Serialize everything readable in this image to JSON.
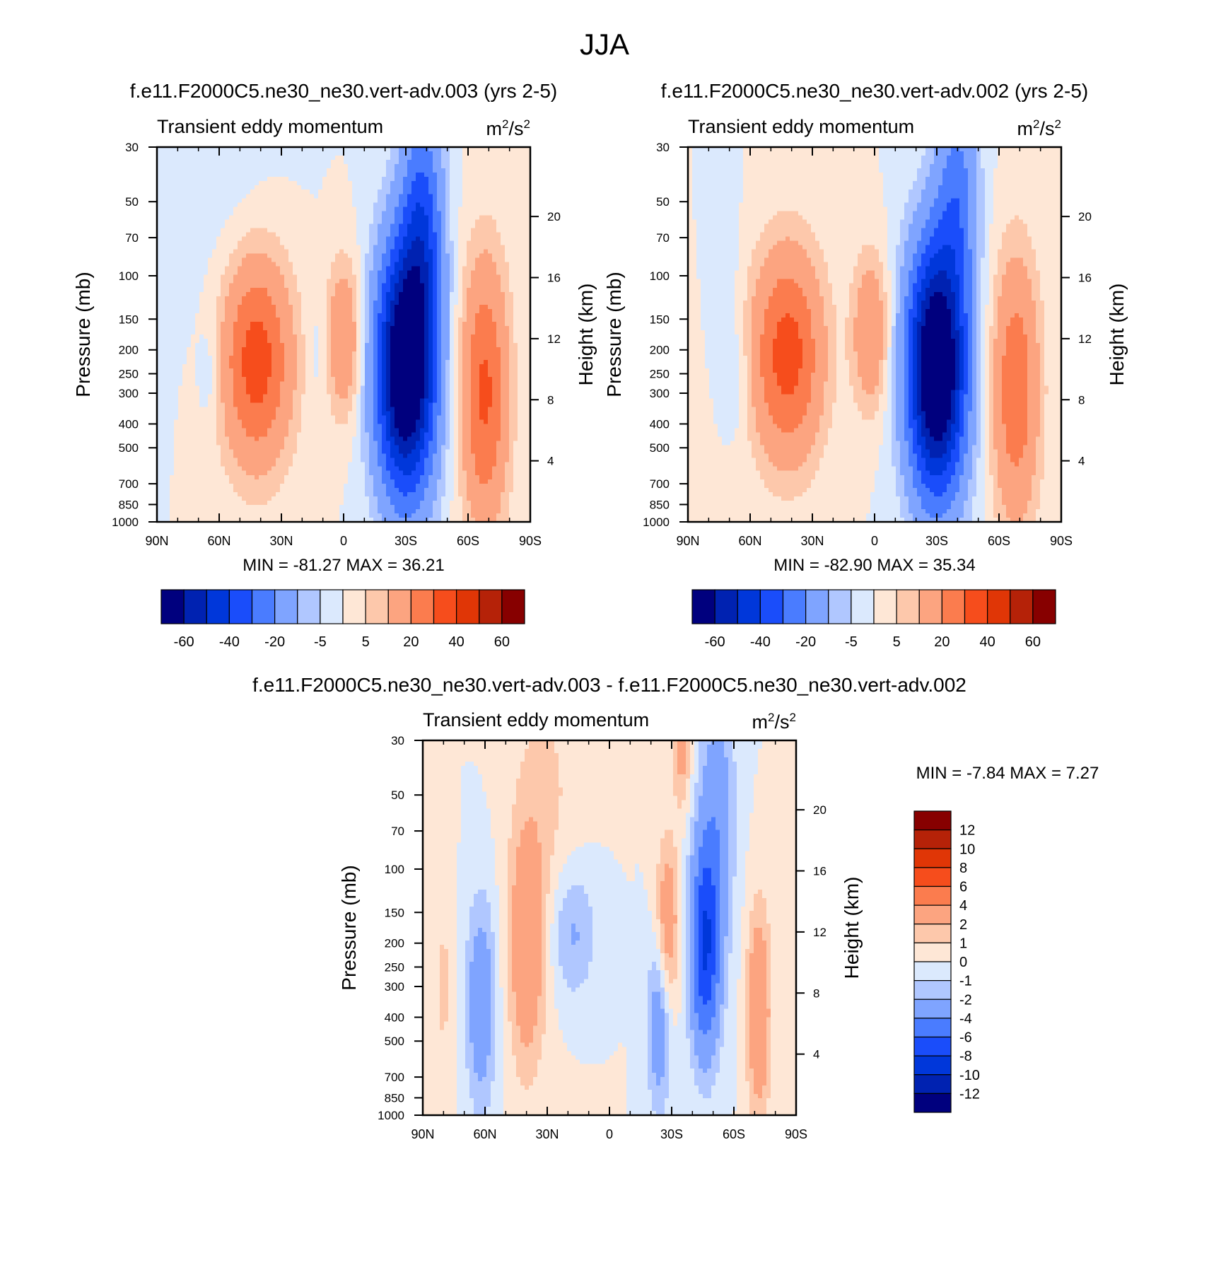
{
  "figure_title": "JJA",
  "colors": {
    "full_levels": [
      "#00007e",
      "#0022b1",
      "#0037da",
      "#1a4dfa",
      "#4a7cff",
      "#7fa4ff",
      "#b0c7ff",
      "#dbe9fd",
      "#fee7d6",
      "#fdc8ab",
      "#fca480",
      "#fb7c4e",
      "#f64d1c",
      "#e03606",
      "#b52208",
      "#870000"
    ],
    "diff_levels": [
      "#00007e",
      "#0022b1",
      "#0037da",
      "#1a4dfa",
      "#4a7cff",
      "#7fa4ff",
      "#b0c7ff",
      "#dbe9fd",
      "#fee7d6",
      "#fdc8ab",
      "#fca480",
      "#fb7c4e",
      "#f64d1c",
      "#e03606",
      "#b52208",
      "#870000"
    ]
  },
  "chart_data": [
    {
      "type": "heatmap",
      "subtype": "filled-contour",
      "title": "f.e11.F2000C5.ne30_ne30.vert-adv.003 (yrs 2-5)",
      "left_string": "Transient eddy momentum",
      "units": {
        "base": "m",
        "sup1": "2",
        "mid": "/s",
        "sup2": "2"
      },
      "ylabel": "Pressure (mb)",
      "ylabel_right": "Height (km)",
      "xticks": [
        "90N",
        "60N",
        "30N",
        "0",
        "30S",
        "60S",
        "90S"
      ],
      "xlim": [
        90,
        -90
      ],
      "yticks": [
        30,
        50,
        70,
        100,
        150,
        200,
        250,
        300,
        400,
        500,
        700,
        850,
        1000
      ],
      "ylim": [
        1000,
        30
      ],
      "height_ticks": [
        20,
        16,
        12,
        8,
        4
      ],
      "min_label": "MIN = -81.27",
      "max_label": "MAX =  36.21",
      "min": -81.27,
      "max": 36.21,
      "levels": [
        -70,
        -60,
        -50,
        -40,
        -30,
        -20,
        -10,
        -5,
        0,
        5,
        10,
        20,
        30,
        40,
        50,
        60,
        70
      ],
      "colorbar_labels": [
        "-60",
        "-40",
        "-20",
        "-5",
        "5",
        "20",
        "40",
        "60"
      ],
      "features": [
        {
          "lat": 42,
          "p": 220,
          "amp": 36,
          "wlat": 12,
          "wlogp": 0.3
        },
        {
          "lat": 0,
          "p": 180,
          "amp": 20,
          "wlat": 6,
          "wlogp": 0.22
        },
        {
          "lat": -30,
          "p": 240,
          "amp": -81,
          "wlat": 10,
          "wlogp": 0.36
        },
        {
          "lat": -38,
          "p": 60,
          "amp": -30,
          "wlat": 7,
          "wlogp": 0.35
        },
        {
          "lat": -68,
          "p": 300,
          "amp": 32,
          "wlat": 8,
          "wlogp": 0.38
        },
        {
          "lat": 64,
          "p": 250,
          "amp": -6,
          "wlat": 4,
          "wlogp": 0.15
        },
        {
          "lat": 12,
          "p": 200,
          "amp": -4,
          "wlat": 4,
          "wlogp": 0.2
        },
        {
          "lat": 55,
          "p": 60,
          "amp": -3,
          "wlat": 18,
          "wlogp": 0.4
        }
      ]
    },
    {
      "type": "heatmap",
      "subtype": "filled-contour",
      "title": "f.e11.F2000C5.ne30_ne30.vert-adv.002 (yrs 2-5)",
      "left_string": "Transient eddy momentum",
      "units": {
        "base": "m",
        "sup1": "2",
        "mid": "/s",
        "sup2": "2"
      },
      "ylabel": "Pressure (mb)",
      "ylabel_right": "Height (km)",
      "xticks": [
        "90N",
        "60N",
        "30N",
        "0",
        "30S",
        "60S",
        "90S"
      ],
      "xlim": [
        90,
        -90
      ],
      "yticks": [
        30,
        50,
        70,
        100,
        150,
        200,
        250,
        300,
        400,
        500,
        700,
        850,
        1000
      ],
      "ylim": [
        1000,
        30
      ],
      "height_ticks": [
        20,
        16,
        12,
        8,
        4
      ],
      "min_label": "MIN = -82.90",
      "max_label": "MAX =  35.34",
      "min": -82.9,
      "max": 35.34,
      "levels": [
        -70,
        -60,
        -50,
        -40,
        -30,
        -20,
        -10,
        -5,
        0,
        5,
        10,
        20,
        30,
        40,
        50,
        60,
        70
      ],
      "colorbar_labels": [
        "-60",
        "-40",
        "-20",
        "-5",
        "5",
        "20",
        "40",
        "60"
      ],
      "features": [
        {
          "lat": 42,
          "p": 210,
          "amp": 35,
          "wlat": 12,
          "wlogp": 0.3
        },
        {
          "lat": 2,
          "p": 170,
          "amp": 20,
          "wlat": 6,
          "wlogp": 0.22
        },
        {
          "lat": -30,
          "p": 240,
          "amp": -83,
          "wlat": 10,
          "wlogp": 0.36
        },
        {
          "lat": -40,
          "p": 45,
          "amp": -22,
          "wlat": 7,
          "wlogp": 0.3
        },
        {
          "lat": -68,
          "p": 290,
          "amp": 28,
          "wlat": 8,
          "wlogp": 0.38
        },
        {
          "lat": 66,
          "p": 270,
          "amp": -5,
          "wlat": 4,
          "wlogp": 0.15
        },
        {
          "lat": 70,
          "p": 120,
          "amp": -3,
          "wlat": 5,
          "wlogp": 0.3
        }
      ]
    },
    {
      "type": "heatmap",
      "subtype": "filled-contour",
      "title": "f.e11.F2000C5.ne30_ne30.vert-adv.003 - f.e11.F2000C5.ne30_ne30.vert-adv.002",
      "left_string": "Transient eddy momentum",
      "units": {
        "base": "m",
        "sup1": "2",
        "mid": "/s",
        "sup2": "2"
      },
      "ylabel": "Pressure (mb)",
      "ylabel_right": "Height (km)",
      "xticks": [
        "90N",
        "60N",
        "30N",
        "0",
        "30S",
        "60S",
        "90S"
      ],
      "xlim": [
        90,
        -90
      ],
      "yticks": [
        30,
        50,
        70,
        100,
        150,
        200,
        250,
        300,
        400,
        500,
        700,
        850,
        1000
      ],
      "ylim": [
        1000,
        30
      ],
      "height_ticks": [
        20,
        16,
        12,
        8,
        4
      ],
      "min_label": "MIN =  -7.84",
      "max_label": "MAX =   7.27",
      "min": -7.84,
      "max": 7.27,
      "levels": [
        -14,
        -12,
        -10,
        -8,
        -6,
        -4,
        -2,
        -1,
        0,
        1,
        2,
        4,
        6,
        8,
        10,
        12,
        14
      ],
      "colorbar_labels": [
        "12",
        "10",
        "8",
        "6",
        "4",
        "2",
        "1",
        "0",
        "-1",
        "-2",
        "-4",
        "-6",
        "-8",
        "-10",
        "-12"
      ],
      "features": [
        {
          "lat": 40,
          "p": 210,
          "amp": 3.5,
          "wlat": 6,
          "wlogp": 0.35
        },
        {
          "lat": 62,
          "p": 350,
          "amp": -3.5,
          "wlat": 5,
          "wlogp": 0.3
        },
        {
          "lat": 18,
          "p": 180,
          "amp": -2.5,
          "wlat": 8,
          "wlogp": 0.2
        },
        {
          "lat": -28,
          "p": 170,
          "amp": 3.5,
          "wlat": 4,
          "wlogp": 0.25
        },
        {
          "lat": -46,
          "p": 210,
          "amp": -7.8,
          "wlat": 5,
          "wlogp": 0.3
        },
        {
          "lat": -52,
          "p": 60,
          "amp": -3,
          "wlat": 6,
          "wlogp": 0.4
        },
        {
          "lat": -72,
          "p": 380,
          "amp": 4,
          "wlat": 4,
          "wlogp": 0.3
        },
        {
          "lat": -24,
          "p": 420,
          "amp": -3.5,
          "wlat": 4,
          "wlogp": 0.25
        },
        {
          "lat": -35,
          "p": 35,
          "amp": 2.5,
          "wlat": 3,
          "wlogp": 0.15
        },
        {
          "lat": 30,
          "p": 60,
          "amp": 1.2,
          "wlat": 12,
          "wlogp": 0.5
        },
        {
          "lat": 80,
          "p": 300,
          "amp": 1.2,
          "wlat": 4,
          "wlogp": 0.3
        }
      ]
    }
  ]
}
